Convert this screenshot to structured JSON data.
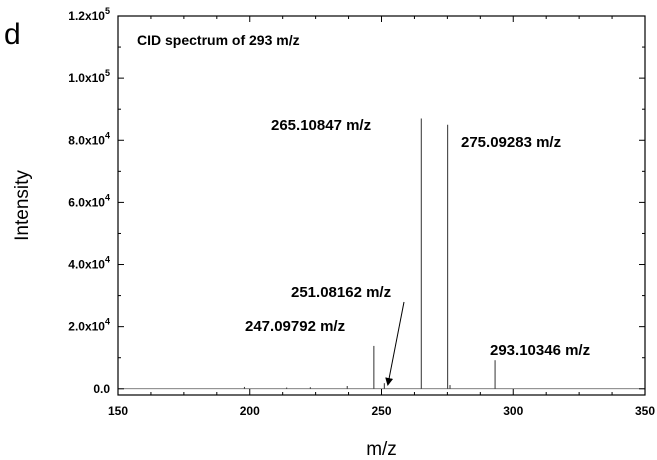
{
  "chart_data": {
    "type": "line",
    "panel_label": "d",
    "title": "CID spectrum of 293 m/z",
    "xlabel": "m/z",
    "ylabel": "Intensity",
    "xlim": [
      150,
      350
    ],
    "ylim": [
      -2000,
      120000
    ],
    "x_ticks": [
      150,
      200,
      250,
      300,
      350
    ],
    "y_ticks": [
      {
        "value": 0,
        "label": "0.0",
        "exp": ""
      },
      {
        "value": 20000,
        "label": "2.0x10",
        "exp": "4"
      },
      {
        "value": 40000,
        "label": "4.0x10",
        "exp": "4"
      },
      {
        "value": 60000,
        "label": "6.0x10",
        "exp": "4"
      },
      {
        "value": 80000,
        "label": "8.0x10",
        "exp": "4"
      },
      {
        "value": 100000,
        "label": "1.0x10",
        "exp": "5"
      },
      {
        "value": 120000,
        "label": "1.2x10",
        "exp": "5"
      }
    ],
    "grid": false,
    "peaks": [
      {
        "x": 198.0,
        "y": 600
      },
      {
        "x": 214.0,
        "y": 400
      },
      {
        "x": 223.0,
        "y": 500
      },
      {
        "x": 237.0,
        "y": 900
      },
      {
        "x": 247.09792,
        "y": 13800,
        "label": "247.09792 m/z"
      },
      {
        "x": 251.08162,
        "y": 1800,
        "label": "251.08162 m/z"
      },
      {
        "x": 265.10847,
        "y": 87000,
        "label": "265.10847 m/z"
      },
      {
        "x": 275.09283,
        "y": 85000,
        "label": "275.09283 m/z"
      },
      {
        "x": 276.0,
        "y": 1200
      },
      {
        "x": 293.10346,
        "y": 9200,
        "label": "293.10346 m/z"
      }
    ]
  }
}
